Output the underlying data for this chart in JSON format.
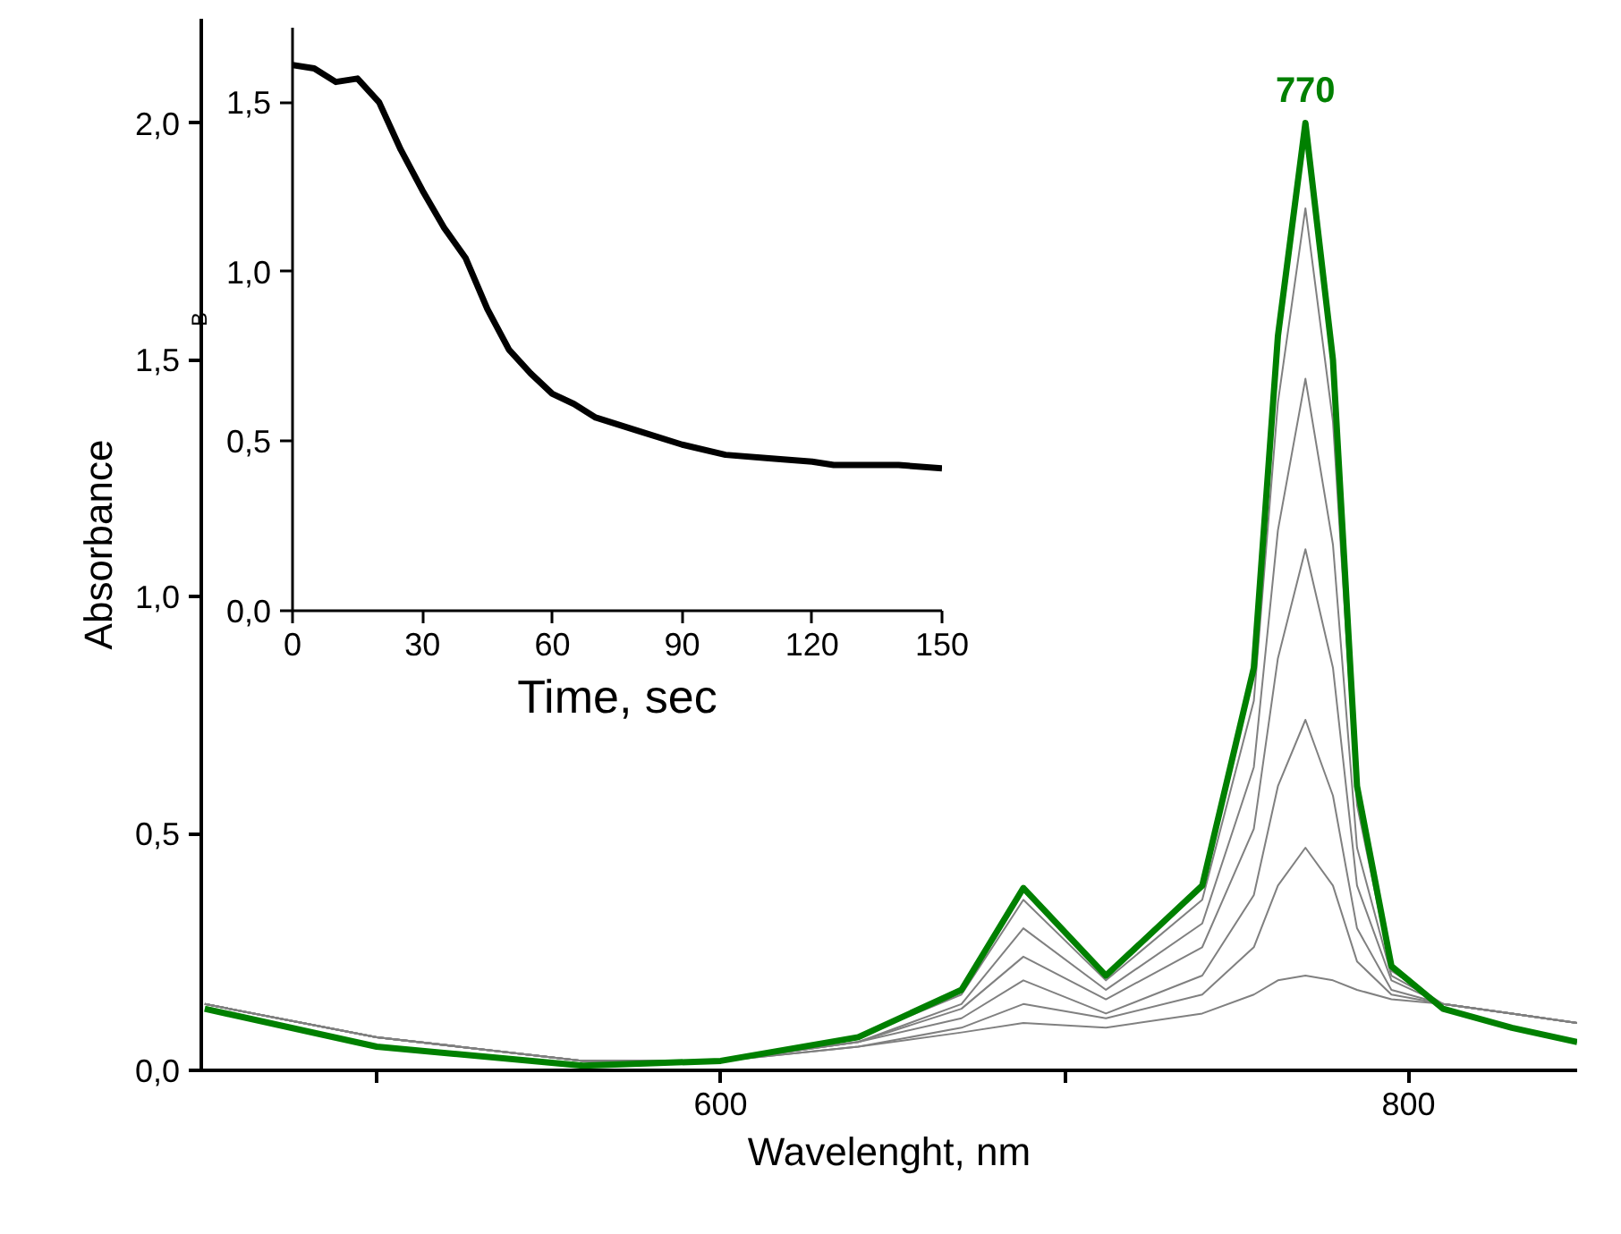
{
  "chart_data": [
    {
      "type": "line",
      "xlabel": "Wavelenght, nm",
      "ylabel": "Absorbance",
      "xlim": [
        449,
        849
      ],
      "ylim": [
        0,
        2.22
      ],
      "xticks": [
        {
          "value": 500,
          "label": null
        },
        600,
        {
          "value": 700,
          "label": null
        },
        800
      ],
      "yticks": [
        {
          "value": 0,
          "label": "0,0"
        },
        {
          "value": 0.5,
          "label": "0,5"
        },
        {
          "value": 1.0,
          "label": "1,0"
        },
        {
          "value": 1.5,
          "label": "1,5"
        },
        {
          "value": 2.0,
          "label": "2,0"
        }
      ],
      "grid": false,
      "marker": "none",
      "line_style": "solid",
      "x": [
        450,
        500,
        560,
        600,
        640,
        670,
        688,
        712,
        740,
        755,
        762,
        770,
        778,
        785,
        795,
        810,
        830,
        849
      ],
      "annotations": [
        {
          "text": "770",
          "x": 770,
          "y": 2.0
        }
      ],
      "series": [
        {
          "color": "#008000",
          "values": [
            0.13,
            0.05,
            0.01,
            0.02,
            0.07,
            0.17,
            0.385,
            0.2,
            0.39,
            0.85,
            1.55,
            2.0,
            1.5,
            0.6,
            0.22,
            0.13,
            0.09,
            0.06
          ]
        },
        {
          "color": "#808080",
          "values": [
            0.14,
            0.07,
            0.02,
            0.02,
            0.07,
            0.16,
            0.36,
            0.19,
            0.36,
            0.78,
            1.41,
            1.82,
            1.37,
            0.56,
            0.21,
            0.14,
            0.12,
            0.1
          ]
        },
        {
          "color": "#808080",
          "values": [
            0.14,
            0.07,
            0.02,
            0.02,
            0.06,
            0.14,
            0.3,
            0.17,
            0.31,
            0.64,
            1.14,
            1.46,
            1.11,
            0.47,
            0.2,
            0.14,
            0.12,
            0.1
          ]
        },
        {
          "color": "#808080",
          "values": [
            0.14,
            0.07,
            0.02,
            0.02,
            0.06,
            0.13,
            0.24,
            0.15,
            0.26,
            0.51,
            0.87,
            1.1,
            0.85,
            0.39,
            0.19,
            0.14,
            0.12,
            0.1
          ]
        },
        {
          "color": "#808080",
          "values": [
            0.14,
            0.07,
            0.02,
            0.02,
            0.06,
            0.11,
            0.19,
            0.12,
            0.2,
            0.37,
            0.6,
            0.74,
            0.58,
            0.3,
            0.17,
            0.14,
            0.12,
            0.1
          ]
        },
        {
          "color": "#808080",
          "values": [
            0.14,
            0.07,
            0.02,
            0.02,
            0.05,
            0.09,
            0.14,
            0.11,
            0.16,
            0.26,
            0.39,
            0.47,
            0.39,
            0.23,
            0.16,
            0.14,
            0.12,
            0.1
          ]
        },
        {
          "color": "#808080",
          "values": [
            0.14,
            0.07,
            0.02,
            0.02,
            0.05,
            0.08,
            0.1,
            0.09,
            0.12,
            0.16,
            0.19,
            0.2,
            0.19,
            0.17,
            0.15,
            0.14,
            0.12,
            0.1
          ]
        }
      ]
    },
    {
      "type": "line",
      "xlabel": "Time, sec",
      "ylabel": "B",
      "xlim": [
        0,
        150
      ],
      "ylim": [
        0,
        1.72
      ],
      "xticks": [
        0,
        30,
        60,
        90,
        120,
        150
      ],
      "yticks": [
        {
          "value": 0,
          "label": "0,0"
        },
        {
          "value": 0.5,
          "label": "0,5"
        },
        {
          "value": 1.0,
          "label": "1,0"
        },
        {
          "value": 1.5,
          "label": "1,5"
        }
      ],
      "grid": false,
      "marker": "none",
      "line_style": "solid",
      "x": [
        0,
        5,
        10,
        15,
        20,
        25,
        30,
        35,
        40,
        45,
        50,
        55,
        60,
        65,
        70,
        80,
        90,
        100,
        110,
        120,
        125,
        130,
        140,
        150
      ],
      "series": [
        {
          "color": "#000000",
          "values": [
            1.61,
            1.6,
            1.56,
            1.57,
            1.5,
            1.36,
            1.24,
            1.13,
            1.04,
            0.89,
            0.77,
            0.7,
            0.64,
            0.61,
            0.57,
            0.53,
            0.49,
            0.46,
            0.45,
            0.44,
            0.43,
            0.43,
            0.43,
            0.42
          ]
        }
      ]
    }
  ]
}
